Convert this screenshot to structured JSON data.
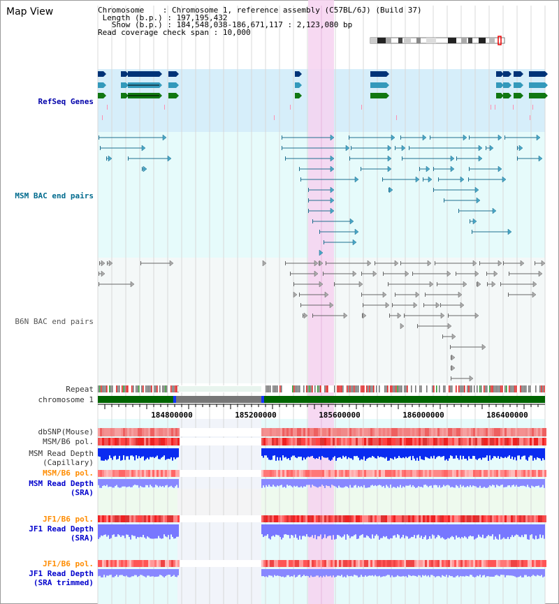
{
  "map_title": "Map View",
  "info": {
    "chromosome_key": "Chromosome",
    "chromosome_val": "Chromosome 1, reference assembly (C57BL/6J) (Build 37)",
    "length_key": "Length (b.p.)",
    "length_val": "197,195,432",
    "show_key": "Show (b.p.)",
    "show_val": "184,548,038-186,671,117 : 2,123,080 bp",
    "span_key": "Read coverage check span",
    "span_val": "10,000"
  },
  "tracks": {
    "refseq": "RefSeq Genes",
    "msm_bac": "MSM BAC end pairs",
    "b6n_bac": "B6N BAC end pairs",
    "repeat": "Repeat",
    "chromosome": "chromosome 1",
    "dbsnp": "dbSNP(Mouse)",
    "msm_b6_pol": "MSM/B6 pol.",
    "msm_depth_cap_1": "MSM Read Depth",
    "msm_depth_cap_2": "(Capillary)",
    "msm_b6_pol2": "MSM/B6 pol.",
    "msm_depth_sra_1": "MSM Read Depth",
    "msm_depth_sra_2": "(SRA)",
    "jf1_b6_pol": "JF1/B6 pol.",
    "jf1_depth_sra_1": "JF1 Read Depth",
    "jf1_depth_sra_2": "(SRA)",
    "jf1_b6_pol2": "JF1/B6 pol.",
    "jf1_depth_trim_1": "JF1 Read Depth",
    "jf1_depth_trim_2": "(SRA trimmed)"
  },
  "axis": {
    "ticks": [
      "184800000",
      "185200000",
      "185600000",
      "186000000",
      "186400000"
    ]
  },
  "colors": {
    "refseq_bg": "#d6eefa",
    "bac_bg": "#e6fbfb",
    "highlight": "#f6d2f0",
    "refseq_label": "#0000aa",
    "msm_bac_label": "#006b8e",
    "b6n_label": "#555555",
    "orange_label": "#ff8c00",
    "blue_label": "#0000cc",
    "chromosome_green": "#006400",
    "depth_blue": "#0033dd",
    "depth_light": "#7777ff",
    "pol_red": "#ee3333"
  }
}
